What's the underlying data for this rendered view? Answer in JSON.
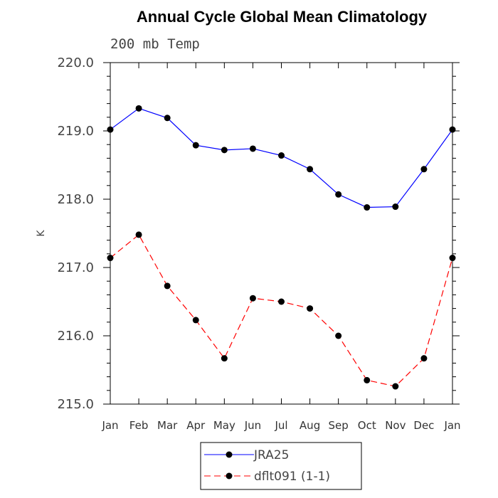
{
  "chart_data": {
    "type": "line",
    "title": "Annual Cycle Global Mean Climatology",
    "subtitle": "200 mb Temp",
    "xlabel": "",
    "ylabel": "K",
    "categories": [
      "Jan",
      "Feb",
      "Mar",
      "Apr",
      "May",
      "Jun",
      "Jul",
      "Aug",
      "Sep",
      "Oct",
      "Nov",
      "Dec",
      "Jan"
    ],
    "ylim": [
      215.0,
      220.0
    ],
    "yticks": [
      "215.0",
      "216.0",
      "217.0",
      "218.0",
      "219.0",
      "220.0"
    ],
    "grid": false,
    "legend_position": "bottom-center",
    "series": [
      {
        "name": "JRA25",
        "color": "#0000ff",
        "line_style": "solid",
        "values": [
          219.02,
          219.33,
          219.19,
          218.79,
          218.72,
          218.74,
          218.64,
          218.44,
          218.07,
          217.88,
          217.89,
          218.44,
          219.02
        ]
      },
      {
        "name": "dflt091 (1-1)",
        "color": "#ff0000",
        "line_style": "dashed",
        "values": [
          217.14,
          217.48,
          216.73,
          216.23,
          215.67,
          216.55,
          216.5,
          216.4,
          216.0,
          215.35,
          215.26,
          215.67,
          217.14
        ]
      }
    ]
  }
}
